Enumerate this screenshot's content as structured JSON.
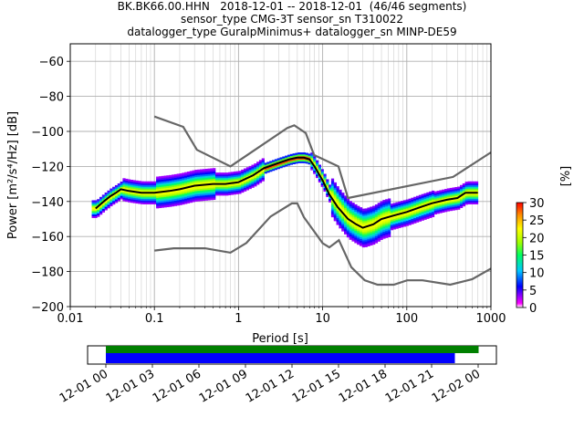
{
  "title": {
    "line1": "BK.BK66.00.HHN   2018-12-01 -- 2018-12-01  (46/46 segments)",
    "line2": "sensor_type CMG-3T sensor_sn T310022",
    "line3": "datalogger_type GuralpMinimus+ datalogger_sn MINP-DE59"
  },
  "chart_data": [
    {
      "type": "heatmap",
      "subtype": "probabilistic-power-spectral-density",
      "xlabel": "Period [s]",
      "ylabel": "Power [m²/s⁴/Hz] [dB]",
      "xscale": "log",
      "xlim": [
        0.01,
        1000
      ],
      "ylim": [
        -200,
        -50
      ],
      "xticks": [
        0.01,
        0.1,
        1,
        10,
        100,
        1000
      ],
      "xtick_labels": [
        "0.01",
        "0.1",
        "1",
        "10",
        "100",
        "1000"
      ],
      "yticks": [
        -200,
        -180,
        -160,
        -140,
        -120,
        -100,
        -80,
        -60
      ],
      "ytick_labels": [
        "−200",
        "−180",
        "−160",
        "−140",
        "−120",
        "−100",
        "−80",
        "−60"
      ],
      "grid": true,
      "colorbar": {
        "label": "[%]",
        "range": [
          0,
          30
        ],
        "ticks": [
          0,
          5,
          10,
          15,
          20,
          25,
          30
        ],
        "tick_labels": [
          "0",
          "5",
          "10",
          "15",
          "20",
          "25",
          "30"
        ],
        "colormap": "pqlx"
      },
      "series": [
        {
          "role": "mode",
          "color": "#000000",
          "x": [
            0.02,
            0.025,
            0.03,
            0.035,
            0.04,
            0.05,
            0.07,
            0.1,
            0.15,
            0.2,
            0.3,
            0.5,
            0.7,
            1,
            1.5,
            2,
            3,
            4,
            5,
            6,
            7,
            8,
            10,
            12,
            15,
            20,
            25,
            30,
            40,
            50,
            70,
            100,
            150,
            200,
            300,
            400,
            500,
            700
          ],
          "y": [
            -144,
            -140,
            -137,
            -135,
            -133,
            -134,
            -135,
            -135,
            -134,
            -133,
            -131,
            -130,
            -130,
            -129,
            -125,
            -121,
            -118,
            -116,
            -115,
            -115,
            -116,
            -120,
            -128,
            -136,
            -143,
            -150,
            -153,
            -155,
            -153,
            -150,
            -148,
            -146,
            -143,
            -141,
            -139,
            -138,
            -135,
            -135
          ]
        },
        {
          "role": "new-high-noise-model",
          "color": "#666666",
          "x": [
            0.1,
            0.22,
            0.32,
            0.8,
            3.8,
            4.6,
            6.3,
            7.9,
            15.4,
            20,
            354.8,
            1000
          ],
          "y": [
            -91.5,
            -97.4,
            -110.5,
            -120,
            -98,
            -96.5,
            -101,
            -113.5,
            -120,
            -138,
            -126,
            -112
          ]
        },
        {
          "role": "new-low-noise-model",
          "color": "#666666",
          "x": [
            0.1,
            0.17,
            0.4,
            0.8,
            1.24,
            2.4,
            4.3,
            5,
            6,
            10,
            12,
            15.6,
            21.9,
            31.6,
            45,
            70,
            101,
            154,
            328,
            600,
            1000
          ],
          "y": [
            -168,
            -166.7,
            -166.7,
            -169.2,
            -163.7,
            -148.6,
            -141.1,
            -141.1,
            -149,
            -163.8,
            -166.2,
            -162.1,
            -177.5,
            -185,
            -187.5,
            -187.5,
            -185,
            -185,
            -187.5,
            -184.4,
            -178.3
          ]
        }
      ]
    },
    {
      "type": "timeline",
      "subtype": "data-coverage",
      "xlim": [
        "2018-12-01 00:00",
        "2018-12-02 03:00"
      ],
      "xtick_labels": [
        "12-01 00",
        "12-01 03",
        "12-01 06",
        "12-01 09",
        "12-01 12",
        "12-01 15",
        "12-01 18",
        "12-01 21",
        "12-02 00"
      ],
      "bars": [
        {
          "role": "data",
          "color": "#008000",
          "start": "2018-12-01 00:00",
          "end": "2018-12-02 00:30"
        },
        {
          "role": "used-psd",
          "color": "#0000ff",
          "start": "2018-12-01 00:00",
          "end": "2018-12-01 23:30"
        }
      ]
    }
  ]
}
